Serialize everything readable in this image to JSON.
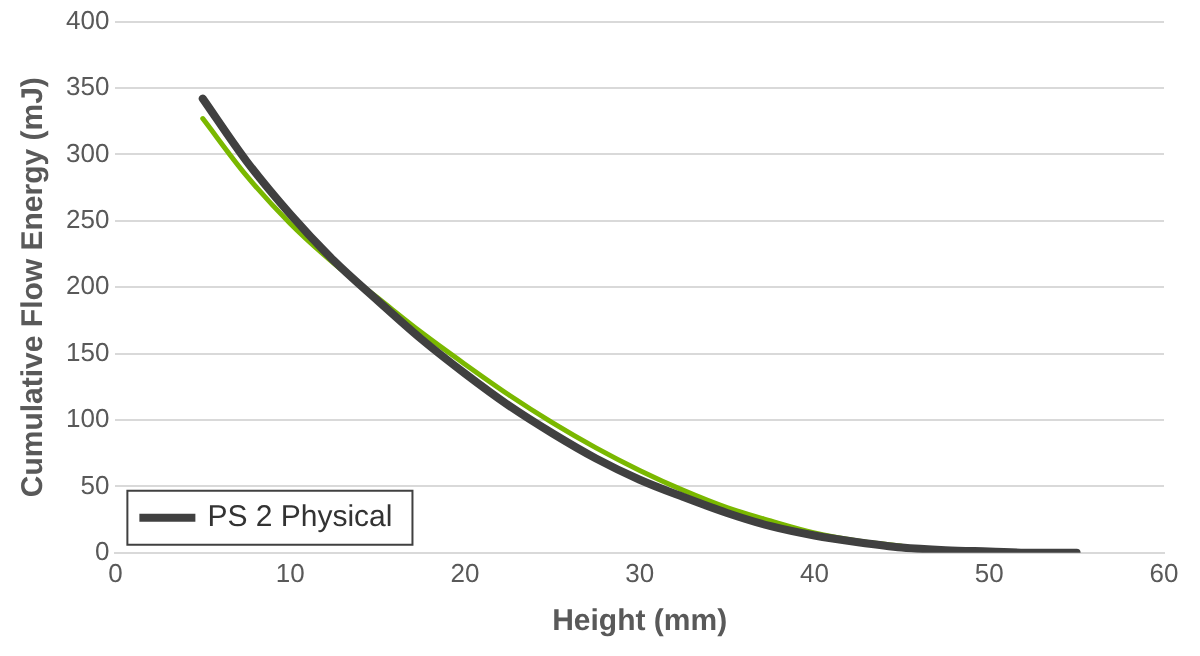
{
  "chart_data": {
    "type": "line",
    "xlabel": "Height (mm)",
    "ylabel": "Cumulative Flow Energy (mJ)",
    "xlim": [
      0,
      60
    ],
    "xticks": [
      0,
      10,
      20,
      30,
      40,
      50,
      60
    ],
    "ylim": [
      0,
      400
    ],
    "yticks": [
      0,
      50,
      100,
      150,
      200,
      250,
      300,
      350,
      400
    ],
    "grid": "y",
    "legend": "bottom left",
    "marker": "none",
    "line_style": "solid",
    "series": [
      {
        "name": "PS 2 Physical",
        "color": "#404040",
        "x": [
          5,
          7.5,
          10,
          12.5,
          15,
          17.5,
          20,
          22.5,
          25,
          27.5,
          30,
          32.5,
          35,
          37.5,
          40,
          42.5,
          45,
          47.5,
          50,
          52.5,
          55
        ],
        "values": [
          342,
          295,
          255,
          220,
          190,
          161,
          135,
          111,
          90,
          71,
          55,
          42,
          30,
          20,
          13,
          8,
          4,
          2,
          1,
          0,
          0
        ]
      },
      {
        "color": "#7ab800",
        "x": [
          5,
          7.5,
          10,
          12.5,
          15,
          17.5,
          20,
          22.5,
          25,
          27.5,
          30,
          32.5,
          35,
          37.5,
          40,
          42.5,
          45
        ],
        "values": [
          327,
          284,
          248,
          218,
          192,
          166,
          142,
          119,
          98,
          79,
          62,
          47,
          34,
          24,
          15,
          9,
          5
        ]
      }
    ]
  }
}
